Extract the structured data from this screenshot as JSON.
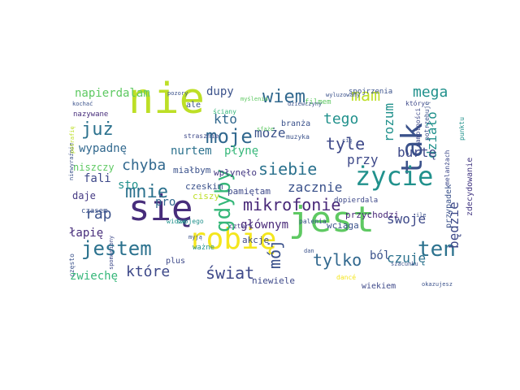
{
  "words": [
    {
      "text": "nie",
      "color": "#bddf26"
    },
    {
      "text": "się",
      "color": "#472d7b"
    },
    {
      "text": "jest",
      "color": "#5ec962"
    },
    {
      "text": "robię",
      "color": "#f4e61e"
    },
    {
      "text": "tak",
      "color": "#3b528b"
    },
    {
      "text": "życie",
      "color": "#21918c"
    },
    {
      "text": "jestem",
      "color": "#2c728e"
    },
    {
      "text": "ten",
      "color": "#2c728e"
    },
    {
      "text": "mikrofonie",
      "color": "#482878"
    },
    {
      "text": "gdyby",
      "color": "#35b779"
    },
    {
      "text": "moje",
      "color": "#31688e"
    },
    {
      "text": "mnie",
      "color": "#2c728e"
    },
    {
      "text": "wiem",
      "color": "#31688e"
    },
    {
      "text": "mam",
      "color": "#bddf26"
    },
    {
      "text": "siebie",
      "color": "#2c728e"
    },
    {
      "text": "tyle",
      "color": "#3e4989"
    },
    {
      "text": "świat",
      "color": "#3e4989"
    },
    {
      "text": "mój",
      "color": "#3b528b"
    },
    {
      "text": "tylko",
      "color": "#31688e"
    },
    {
      "text": "które",
      "color": "#3e4989"
    },
    {
      "text": "chyba",
      "color": "#31688e"
    },
    {
      "text": "już",
      "color": "#2c728e"
    },
    {
      "text": "mega",
      "color": "#21918c"
    },
    {
      "text": "przy",
      "color": "#3e4989"
    },
    {
      "text": "swoje",
      "color": "#3e4989"
    },
    {
      "text": "będzie",
      "color": "#3e4989"
    },
    {
      "text": "tego",
      "color": "#21918c"
    },
    {
      "text": "może",
      "color": "#3b528b"
    },
    {
      "text": "czuję",
      "color": "#2c728e"
    },
    {
      "text": "rap",
      "color": "#3b528b"
    },
    {
      "text": "kto",
      "color": "#31688e"
    },
    {
      "text": "dupy",
      "color": "#3b528b"
    },
    {
      "text": "napierdalam",
      "color": "#5ec962"
    },
    {
      "text": "wypadnę",
      "color": "#31688e"
    },
    {
      "text": "nurtem",
      "color": "#2c728e"
    },
    {
      "text": "płynę",
      "color": "#35b779"
    },
    {
      "text": "zacznie",
      "color": "#3b528b"
    },
    {
      "text": "rozum",
      "color": "#21918c"
    },
    {
      "text": "działo",
      "color": "#21918c"
    },
    {
      "text": "burtę",
      "color": "#3e4989"
    },
    {
      "text": "ból",
      "color": "#3b528b"
    },
    {
      "text": "zwiechę",
      "color": "#35b779"
    },
    {
      "text": "łapię",
      "color": "#472d7b"
    },
    {
      "text": "głównym",
      "color": "#482878"
    },
    {
      "text": "fali",
      "color": "#3e4989"
    },
    {
      "text": "sto",
      "color": "#21918c"
    },
    {
      "text": "pro",
      "color": "#31688e"
    },
    {
      "text": "daje",
      "color": "#443983"
    },
    {
      "text": "niszczy",
      "color": "#5ec962"
    },
    {
      "text": "miałbym",
      "color": "#3b528b"
    },
    {
      "text": "wpłynęło",
      "color": "#443983"
    },
    {
      "text": "pamiętam",
      "color": "#3e4989"
    },
    {
      "text": "czeskim",
      "color": "#3b528b"
    },
    {
      "text": "ciszy",
      "color": "#bddf26"
    },
    {
      "text": "przychodzi",
      "color": "#482878"
    },
    {
      "text": "wciąga",
      "color": "#3b528b"
    },
    {
      "text": "akcje",
      "color": "#3e4989"
    },
    {
      "text": "niewiele",
      "color": "#3e4989"
    },
    {
      "text": "wiekiem",
      "color": "#3e4989"
    },
    {
      "text": "przypadek",
      "color": "#3b528b"
    },
    {
      "text": "zdecydowanie",
      "color": "#443983"
    },
    {
      "text": "dopierdala",
      "color": "#3e4989"
    },
    {
      "text": "plus",
      "color": "#3e4989"
    },
    {
      "text": "ważne",
      "color": "#21918c"
    },
    {
      "text": "palenia",
      "color": "#3b528b"
    },
    {
      "text": "cztery",
      "color": "#443983"
    },
    {
      "text": "branża",
      "color": "#3b528b"
    },
    {
      "text": "muzyka",
      "color": "#3b528b"
    },
    {
      "text": "ściany",
      "color": "#35b779"
    },
    {
      "text": "filmem",
      "color": "#5ec962"
    },
    {
      "text": "spojrzenia",
      "color": "#3b528b"
    },
    {
      "text": "pozory",
      "color": "#3b528b"
    },
    {
      "text": "myślenia",
      "color": "#5ec962"
    },
    {
      "text": "dziewczyny",
      "color": "#3b528b"
    },
    {
      "text": "wyluzowany",
      "color": "#3b528b"
    },
    {
      "text": "kochać",
      "color": "#3b528b"
    },
    {
      "text": "nazywane",
      "color": "#472d7b"
    },
    {
      "text": "ale",
      "color": "#3b528b"
    },
    {
      "text": "który",
      "color": "#3e4989"
    },
    {
      "text": "punktu",
      "color": "#21918c"
    },
    {
      "text": "potrzebuję",
      "color": "#3b528b"
    },
    {
      "text": "samotności",
      "color": "#3e4989"
    },
    {
      "text": "melanżach",
      "color": "#3e4989"
    },
    {
      "text": "niewyraźnie",
      "color": "#3b528b"
    },
    {
      "text": "potrafię",
      "color": "#bddf26"
    },
    {
      "text": "sfaże",
      "color": "#5ec962"
    },
    {
      "text": "strasznie",
      "color": "#3e4989"
    },
    {
      "text": "cię",
      "color": "#3b528b"
    },
    {
      "text": "czasem",
      "color": "#3b528b"
    },
    {
      "text": "widzę",
      "color": "#21918c"
    },
    {
      "text": "swojego",
      "color": "#21918c"
    },
    {
      "text": "myją",
      "color": "#3b528b"
    },
    {
      "text": "często",
      "color": "#3b528b"
    },
    {
      "text": "spomoniony",
      "color": "#3e4989"
    },
    {
      "text": "dan",
      "color": "#3b528b"
    },
    {
      "text": "ile",
      "color": "#3b528b"
    },
    {
      "text": "szacunku",
      "color": "#3b528b"
    },
    {
      "text": "dancé",
      "color": "#f4e61e"
    },
    {
      "text": "okazujesz",
      "color": "#3b528b"
    }
  ]
}
